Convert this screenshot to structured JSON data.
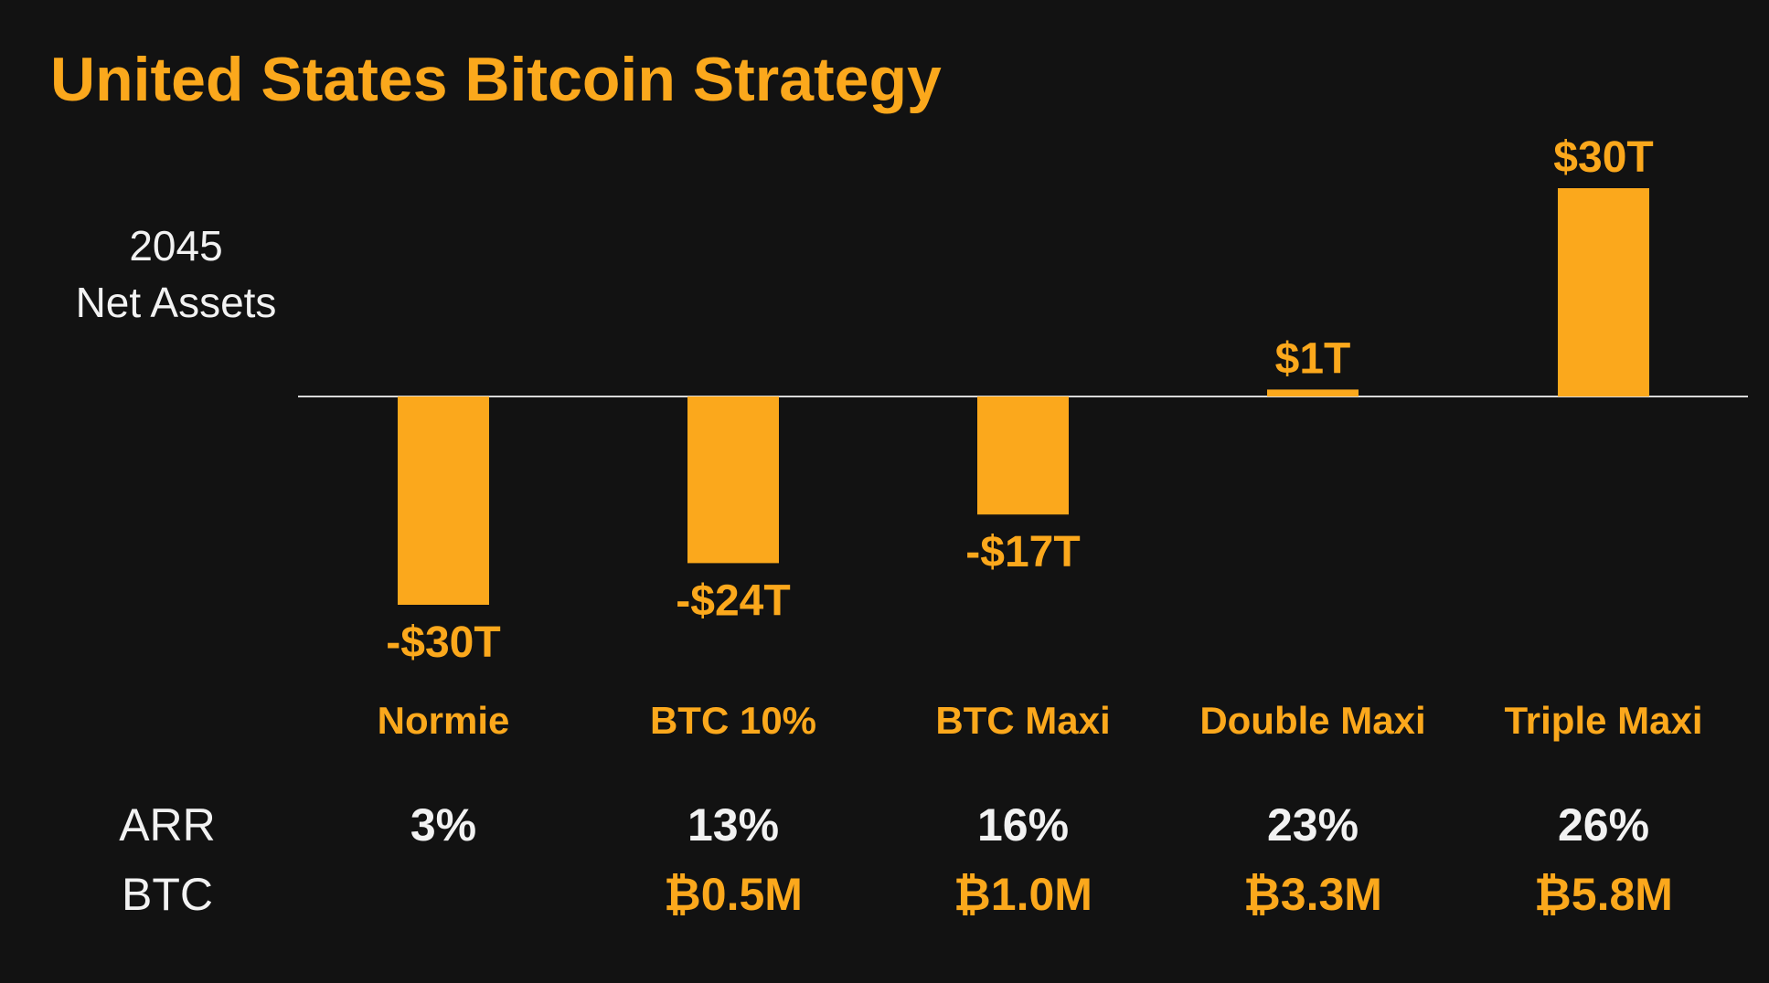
{
  "title": "United States Bitcoin Strategy",
  "ylabel_lines": [
    "2045",
    "Net Assets"
  ],
  "colors": {
    "background": "#121212",
    "accent": "#FBA81C",
    "text": "#F2F2F2",
    "baseline": "#D9D9D9"
  },
  "chart_data": {
    "type": "bar",
    "title": "United States Bitcoin Strategy",
    "ylabel": "2045 Net Assets",
    "categories": [
      "Normie",
      "BTC 10%",
      "BTC Maxi",
      "Double Maxi",
      "Triple Maxi"
    ],
    "values": [
      -30,
      -24,
      -17,
      1,
      30
    ],
    "units": "trillion USD",
    "data_labels": [
      "-$30T",
      "-$24T",
      "-$17T",
      "$1T",
      "$30T"
    ],
    "ylim": [
      -30,
      30
    ],
    "grid": false
  },
  "table": {
    "arr_label": "ARR",
    "btc_label": "BTC",
    "arr_values": [
      "3%",
      "13%",
      "16%",
      "23%",
      "26%"
    ],
    "btc_values": [
      "",
      "₿0.5M",
      "₿1.0M",
      "₿3.3M",
      "₿5.8M"
    ]
  }
}
